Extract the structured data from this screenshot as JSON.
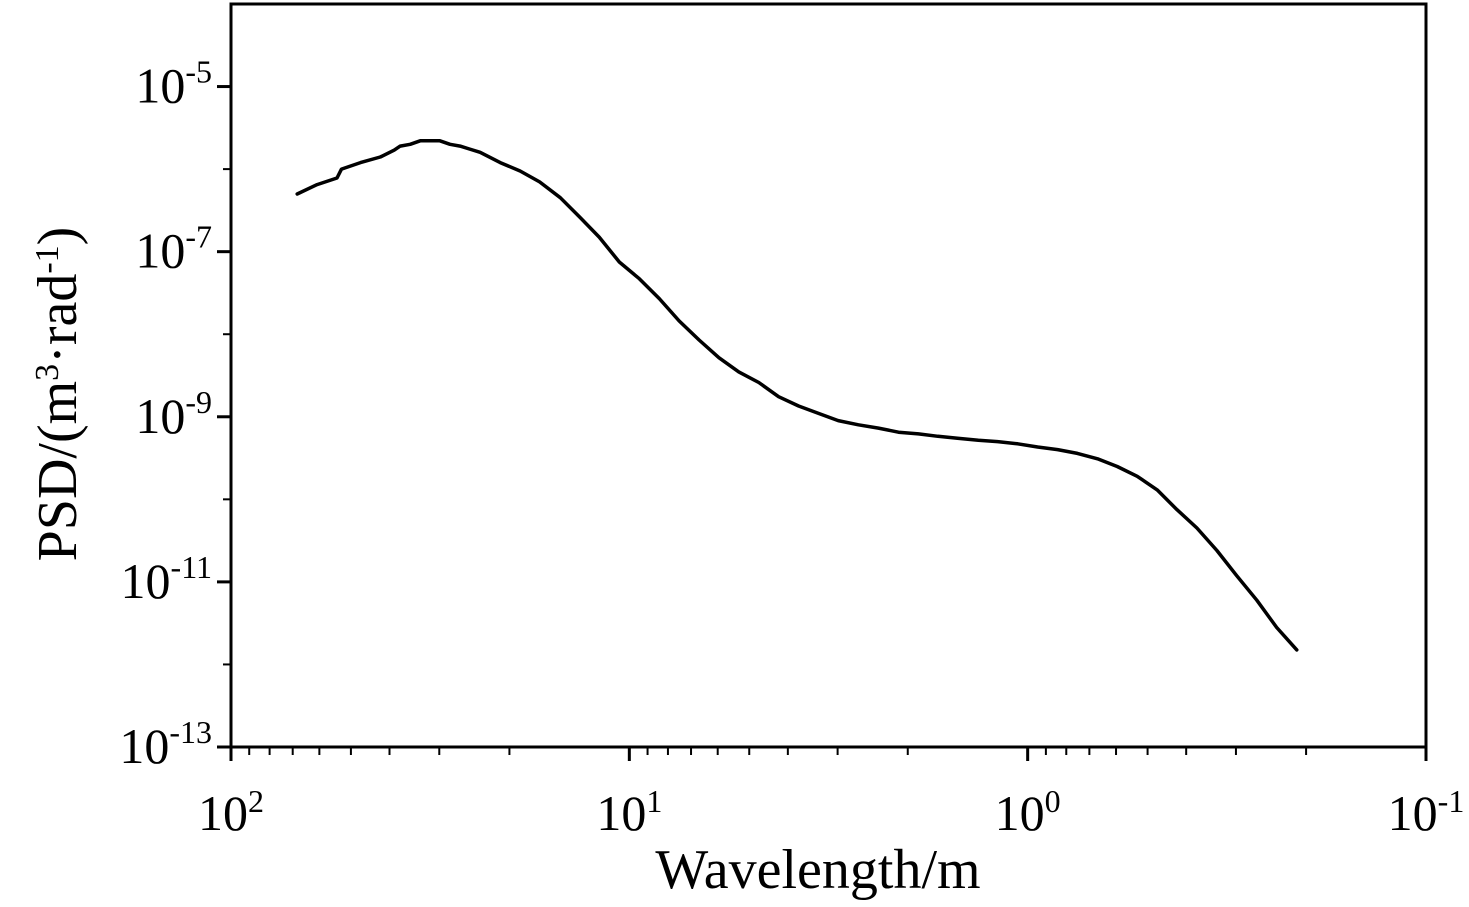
{
  "chart_data": {
    "type": "line",
    "title": "",
    "xlabel": "Wavelength/m",
    "ylabel_parts": {
      "prefix": "PSD/(m",
      "exp1": "3",
      "middle": "·rad",
      "exp2": "-1",
      "suffix": ")"
    },
    "x_scale": "log",
    "x_reversed": true,
    "xlim": [
      100,
      0.1
    ],
    "y_scale": "log",
    "ylim": [
      1e-13,
      0.0001
    ],
    "x_ticks": [
      {
        "base": "10",
        "exp": "2",
        "value": 100
      },
      {
        "base": "10",
        "exp": "1",
        "value": 10
      },
      {
        "base": "10",
        "exp": "0",
        "value": 1
      },
      {
        "base": "10",
        "exp": "-1",
        "value": 0.1
      }
    ],
    "y_ticks": [
      {
        "base": "10",
        "exp": "-5",
        "value": 1e-05
      },
      {
        "base": "10",
        "exp": "-7",
        "value": 1e-07
      },
      {
        "base": "10",
        "exp": "-9",
        "value": 1e-09
      },
      {
        "base": "10",
        "exp": "-11",
        "value": 1e-11
      },
      {
        "base": "10",
        "exp": "-13",
        "value": 1e-13
      }
    ],
    "y_minor_ticks": [
      1e-06,
      1e-08,
      1e-10,
      1e-12
    ],
    "series": [
      {
        "name": "PSD",
        "x": [
          68.2,
          60.8,
          54.2,
          52.8,
          47.3,
          42.2,
          38.9,
          37.6,
          35.5,
          33.5,
          31.7,
          29.9,
          28.2,
          26.6,
          25.2,
          23.7,
          21.1,
          18.8,
          16.8,
          14.9,
          13.3,
          11.9,
          10.6,
          9.44,
          8.41,
          7.5,
          6.68,
          5.96,
          5.31,
          4.73,
          4.22,
          3.76,
          3.35,
          2.99,
          2.66,
          2.37,
          2.11,
          1.88,
          1.68,
          1.5,
          1.33,
          1.19,
          1.06,
          0.944,
          0.841,
          0.75,
          0.668,
          0.596,
          0.531,
          0.473,
          0.422,
          0.376,
          0.335,
          0.299,
          0.266,
          0.237,
          0.211
        ],
        "y": [
          5e-07,
          6.5e-07,
          7.8e-07,
          1e-06,
          1.2e-06,
          1.4e-06,
          1.7e-06,
          1.9e-06,
          2e-06,
          2.2e-06,
          2.2e-06,
          2.2e-06,
          2e-06,
          1.9e-06,
          1.75e-06,
          1.6e-06,
          1.2e-06,
          9.5e-07,
          7e-07,
          4.5e-07,
          2.6e-07,
          1.5e-07,
          7.5e-08,
          4.7e-08,
          2.7e-08,
          1.45e-08,
          8.5e-09,
          5.2e-09,
          3.5e-09,
          2.6e-09,
          1.75e-09,
          1.35e-09,
          1.1e-09,
          9e-10,
          8e-10,
          7.3e-10,
          6.5e-10,
          6.2e-10,
          5.8e-10,
          5.5e-10,
          5.2e-10,
          5e-10,
          4.7e-10,
          4.3e-10,
          4e-10,
          3.6e-10,
          3.1e-10,
          2.5e-10,
          1.9e-10,
          1.3e-10,
          7.5e-11,
          4.5e-11,
          2.4e-11,
          1.2e-11,
          6e-12,
          2.8e-12,
          1.5e-12
        ]
      }
    ]
  }
}
